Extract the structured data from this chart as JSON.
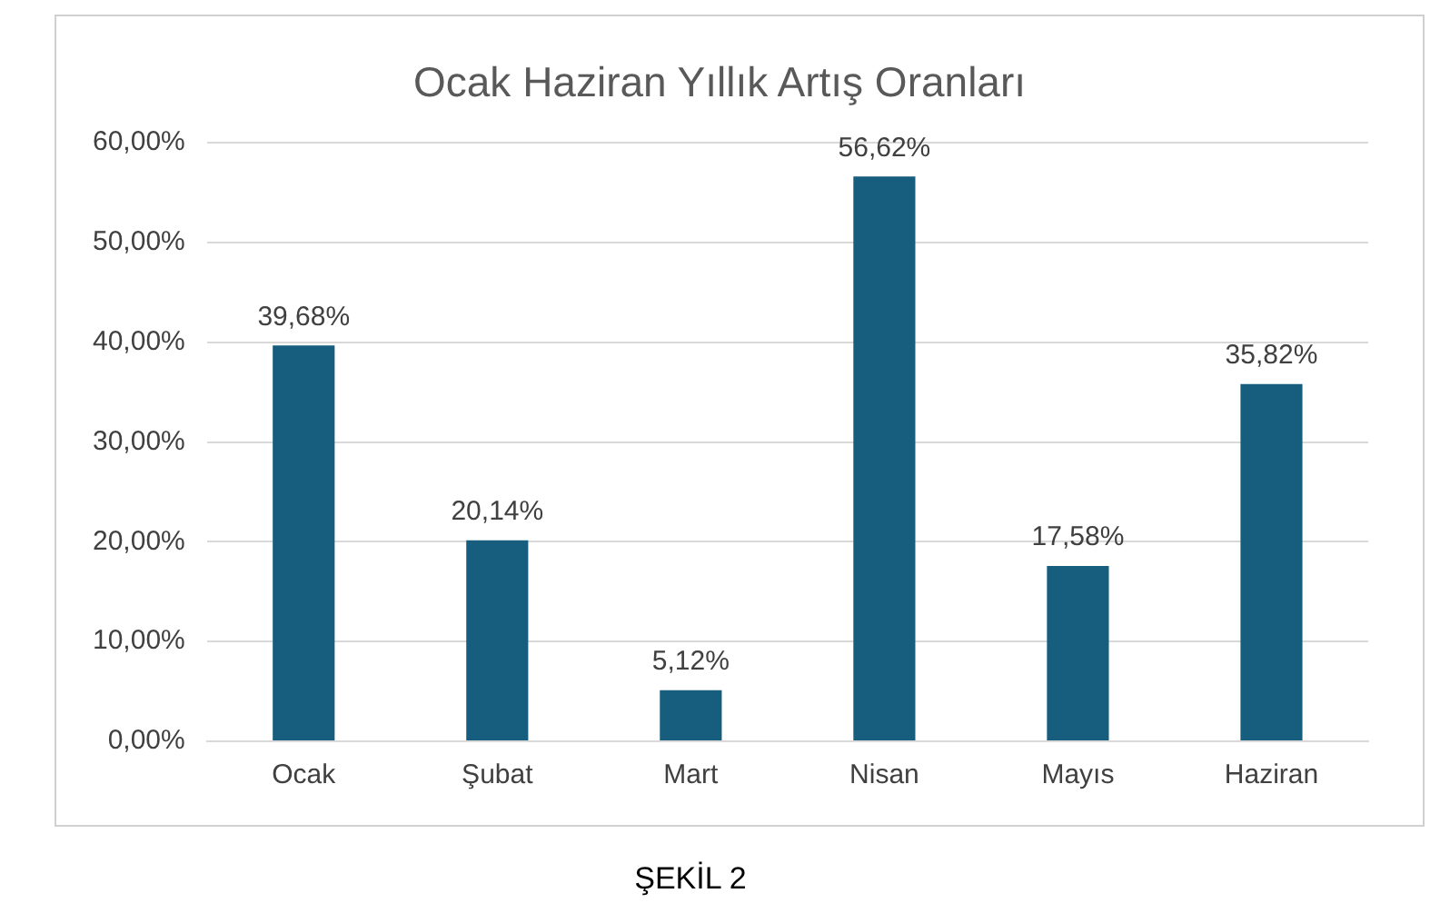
{
  "chart_data": {
    "type": "bar",
    "title": "Ocak Haziran Yıllık Artış Oranları",
    "categories": [
      "Ocak",
      "Şubat",
      "Mart",
      "Nisan",
      "Mayıs",
      "Haziran"
    ],
    "values": [
      39.68,
      20.14,
      5.12,
      56.62,
      17.58,
      35.82
    ],
    "value_labels": [
      "39,68%",
      "20,14%",
      "5,12%",
      "56,62%",
      "17,58%",
      "35,82%"
    ],
    "color": "#175e7e",
    "ylim": [
      0,
      60
    ],
    "yticks": [
      {
        "value": 0,
        "label": "0,00%"
      },
      {
        "value": 10,
        "label": "10,00%"
      },
      {
        "value": 20,
        "label": "20,00%"
      },
      {
        "value": 30,
        "label": "30,00%"
      },
      {
        "value": 40,
        "label": "40,00%"
      },
      {
        "value": 50,
        "label": "50,00%"
      },
      {
        "value": 60,
        "label": "60,00%"
      }
    ],
    "grid": "y",
    "legend": false,
    "annotations": [
      "ŞEKİL 2"
    ]
  }
}
